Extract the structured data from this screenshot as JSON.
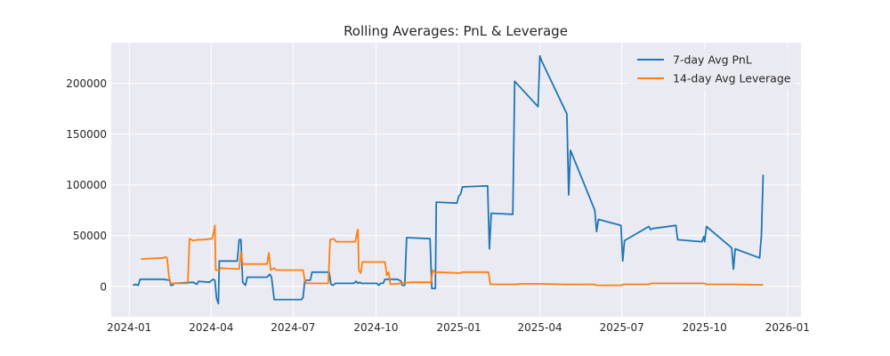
{
  "chart_data": {
    "type": "line",
    "title": "Rolling Averages: PnL & Leverage",
    "xlabel": "",
    "ylabel": "",
    "x_axis": "date",
    "xlim": [
      "2023-12-12",
      "2026-01-16"
    ],
    "ylim": [
      -30000,
      240000
    ],
    "x_ticks": [
      "2024-01-01",
      "2024-04-01",
      "2024-07-01",
      "2024-10-01",
      "2025-01-01",
      "2025-04-01",
      "2025-07-01",
      "2025-10-01",
      "2026-01-01"
    ],
    "x_tick_labels": [
      "2024-01",
      "2024-04",
      "2024-07",
      "2024-10",
      "2025-01",
      "2025-04",
      "2025-07",
      "2025-10",
      "2026-01"
    ],
    "y_ticks": [
      0,
      50000,
      100000,
      150000,
      200000
    ],
    "y_tick_labels": [
      "0",
      "50000",
      "100000",
      "150000",
      "200000"
    ],
    "grid": true,
    "legend_position": "top-right",
    "series": [
      {
        "name": "7-day Avg PnL",
        "color": "#1f77b4",
        "points": [
          [
            "2024-01-05",
            1000
          ],
          [
            "2024-01-08",
            2000
          ],
          [
            "2024-01-11",
            1000
          ],
          [
            "2024-01-13",
            7000
          ],
          [
            "2024-02-08",
            7000
          ],
          [
            "2024-02-15",
            6000
          ],
          [
            "2024-02-16",
            1000
          ],
          [
            "2024-02-18",
            1000
          ],
          [
            "2024-02-20",
            3000
          ],
          [
            "2024-03-12",
            4000
          ],
          [
            "2024-03-16",
            2000
          ],
          [
            "2024-03-18",
            5000
          ],
          [
            "2024-03-30",
            4000
          ],
          [
            "2024-04-03",
            7000
          ],
          [
            "2024-04-05",
            6000
          ],
          [
            "2024-04-07",
            -12000
          ],
          [
            "2024-04-09",
            -17000
          ],
          [
            "2024-04-10",
            25000
          ],
          [
            "2024-04-30",
            25000
          ],
          [
            "2024-05-02",
            46000
          ],
          [
            "2024-05-04",
            46000
          ],
          [
            "2024-05-06",
            4000
          ],
          [
            "2024-05-09",
            1000
          ],
          [
            "2024-05-11",
            9000
          ],
          [
            "2024-06-02",
            9000
          ],
          [
            "2024-06-05",
            12000
          ],
          [
            "2024-06-07",
            9000
          ],
          [
            "2024-06-10",
            -13000
          ],
          [
            "2024-07-10",
            -13000
          ],
          [
            "2024-07-12",
            -11000
          ],
          [
            "2024-07-14",
            6000
          ],
          [
            "2024-07-20",
            6000
          ],
          [
            "2024-07-22",
            14000
          ],
          [
            "2024-08-10",
            14000
          ],
          [
            "2024-08-12",
            2000
          ],
          [
            "2024-08-14",
            1000
          ],
          [
            "2024-08-17",
            3000
          ],
          [
            "2024-09-06",
            3000
          ],
          [
            "2024-09-09",
            5000
          ],
          [
            "2024-09-11",
            3000
          ],
          [
            "2024-09-13",
            4000
          ],
          [
            "2024-09-15",
            3000
          ],
          [
            "2024-10-02",
            3000
          ],
          [
            "2024-10-04",
            1000
          ],
          [
            "2024-10-06",
            3000
          ],
          [
            "2024-10-09",
            3000
          ],
          [
            "2024-10-11",
            7000
          ],
          [
            "2024-10-25",
            7000
          ],
          [
            "2024-10-27",
            6000
          ],
          [
            "2024-10-29",
            5000
          ],
          [
            "2024-10-30",
            1000
          ],
          [
            "2024-11-02",
            1000
          ],
          [
            "2024-11-04",
            48000
          ],
          [
            "2024-11-30",
            47000
          ],
          [
            "2024-12-02",
            -2000
          ],
          [
            "2024-12-06",
            -2000
          ],
          [
            "2024-12-07",
            83000
          ],
          [
            "2024-12-30",
            82000
          ],
          [
            "2025-01-01",
            89000
          ],
          [
            "2025-01-03",
            91000
          ],
          [
            "2025-01-05",
            98000
          ],
          [
            "2025-02-02",
            99000
          ],
          [
            "2025-02-04",
            37000
          ],
          [
            "2025-02-06",
            72000
          ],
          [
            "2025-03-02",
            71000
          ],
          [
            "2025-03-04",
            202000
          ],
          [
            "2025-03-30",
            177000
          ],
          [
            "2025-04-01",
            227000
          ],
          [
            "2025-04-03",
            222000
          ],
          [
            "2025-05-01",
            170000
          ],
          [
            "2025-05-03",
            90000
          ],
          [
            "2025-05-05",
            134000
          ],
          [
            "2025-06-01",
            75000
          ],
          [
            "2025-06-03",
            54000
          ],
          [
            "2025-06-05",
            66000
          ],
          [
            "2025-06-30",
            60000
          ],
          [
            "2025-07-02",
            25000
          ],
          [
            "2025-07-04",
            45000
          ],
          [
            "2025-07-31",
            59000
          ],
          [
            "2025-08-02",
            56000
          ],
          [
            "2025-08-04",
            57000
          ],
          [
            "2025-08-30",
            60000
          ],
          [
            "2025-09-01",
            46000
          ],
          [
            "2025-09-28",
            44000
          ],
          [
            "2025-09-30",
            49000
          ],
          [
            "2025-10-01",
            44000
          ],
          [
            "2025-10-03",
            59000
          ],
          [
            "2025-10-31",
            38000
          ],
          [
            "2025-11-02",
            17000
          ],
          [
            "2025-11-04",
            37000
          ],
          [
            "2025-12-01",
            28000
          ],
          [
            "2025-12-03",
            50000
          ],
          [
            "2025-12-05",
            110000
          ]
        ]
      },
      {
        "name": "14-day Avg Leverage",
        "color": "#ff7f0e",
        "points": [
          [
            "2024-01-14",
            27000
          ],
          [
            "2024-02-08",
            28000
          ],
          [
            "2024-02-10",
            29000
          ],
          [
            "2024-02-12",
            28000
          ],
          [
            "2024-02-14",
            10000
          ],
          [
            "2024-02-16",
            3000
          ],
          [
            "2024-03-06",
            3000
          ],
          [
            "2024-03-08",
            47000
          ],
          [
            "2024-03-12",
            45000
          ],
          [
            "2024-03-18",
            46000
          ],
          [
            "2024-03-23",
            46000
          ],
          [
            "2024-04-02",
            47000
          ],
          [
            "2024-04-04",
            54000
          ],
          [
            "2024-04-05",
            60000
          ],
          [
            "2024-04-06",
            16000
          ],
          [
            "2024-04-10",
            16000
          ],
          [
            "2024-04-12",
            18000
          ],
          [
            "2024-05-02",
            17000
          ],
          [
            "2024-05-04",
            34000
          ],
          [
            "2024-05-06",
            22000
          ],
          [
            "2024-06-02",
            22000
          ],
          [
            "2024-06-04",
            33000
          ],
          [
            "2024-06-06",
            16000
          ],
          [
            "2024-06-10",
            18000
          ],
          [
            "2024-06-12",
            16000
          ],
          [
            "2024-07-12",
            16000
          ],
          [
            "2024-07-14",
            6000
          ],
          [
            "2024-07-16",
            3000
          ],
          [
            "2024-08-09",
            3000
          ],
          [
            "2024-08-11",
            46000
          ],
          [
            "2024-08-15",
            47000
          ],
          [
            "2024-08-18",
            44000
          ],
          [
            "2024-09-08",
            44000
          ],
          [
            "2024-09-10",
            53000
          ],
          [
            "2024-09-11",
            56000
          ],
          [
            "2024-09-12",
            16000
          ],
          [
            "2024-09-14",
            13000
          ],
          [
            "2024-09-16",
            24000
          ],
          [
            "2024-10-11",
            24000
          ],
          [
            "2024-10-13",
            11000
          ],
          [
            "2024-10-15",
            14000
          ],
          [
            "2024-10-17",
            2000
          ],
          [
            "2024-11-10",
            4000
          ],
          [
            "2024-12-01",
            4000
          ],
          [
            "2024-12-03",
            16000
          ],
          [
            "2024-12-06",
            13000
          ],
          [
            "2024-12-09",
            14000
          ],
          [
            "2025-01-02",
            13000
          ],
          [
            "2025-01-06",
            14000
          ],
          [
            "2025-02-03",
            14000
          ],
          [
            "2025-02-05",
            2000
          ],
          [
            "2025-03-07",
            2000
          ],
          [
            "2025-03-10",
            2500
          ],
          [
            "2025-04-02",
            2500
          ],
          [
            "2025-05-04",
            1800
          ],
          [
            "2025-05-31",
            2000
          ],
          [
            "2025-06-03",
            1000
          ],
          [
            "2025-06-30",
            1000
          ],
          [
            "2025-07-03",
            2000
          ],
          [
            "2025-07-31",
            2000
          ],
          [
            "2025-08-03",
            3000
          ],
          [
            "2025-10-01",
            3000
          ],
          [
            "2025-10-03",
            2000
          ],
          [
            "2025-11-04",
            2000
          ],
          [
            "2025-12-05",
            1500
          ]
        ]
      }
    ]
  }
}
